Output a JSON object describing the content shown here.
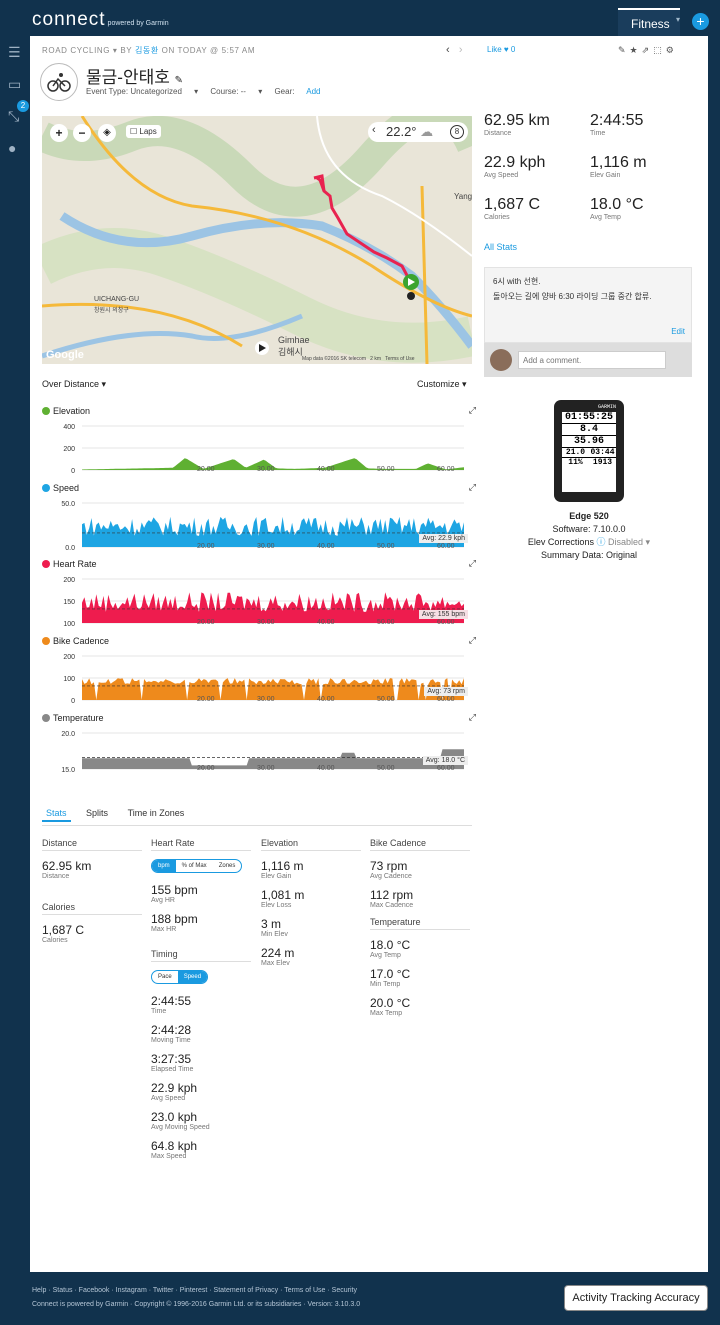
{
  "brand": {
    "logo": "connect",
    "powered": "powered by Garmin"
  },
  "top": {
    "fitness": "Fitness",
    "plus": "+"
  },
  "nav": {
    "badge": "2"
  },
  "activity": {
    "type": "ROAD CYCLING",
    "by": "BY",
    "user": "김동환",
    "date": "ON TODAY @ 5:57 AM",
    "title": "물금-안태호",
    "like": "Like",
    "like_count": "0",
    "event_type": "Event Type: Uncategorized",
    "course": "Course: --",
    "gear_label": "Gear:",
    "gear_add": "Add"
  },
  "map": {
    "laps": "Laps",
    "temp": "22.2°",
    "wind": "8",
    "town1": "UICHANG-GU",
    "town1b": "창원시 의창구",
    "town2": "Gimhae",
    "town2b": "김해시",
    "yang": "Yang",
    "google": "Google",
    "copyright": "Map data ©2016 SK telecom",
    "scale": "2 km",
    "terms": "Terms of Use"
  },
  "charts": {
    "over": "Over Distance",
    "customize": "Customize",
    "items": [
      {
        "label": "Elevation",
        "color": "#5fb032",
        "ticks": [
          "400",
          "200",
          "0"
        ],
        "avg": ""
      },
      {
        "label": "Speed",
        "color": "#1ea5e3",
        "ticks": [
          "50.0",
          "0.0"
        ],
        "avg": "Avg: 22.9 kph"
      },
      {
        "label": "Heart Rate",
        "color": "#ee1c4e",
        "ticks": [
          "200",
          "150",
          "100"
        ],
        "avg": "Avg: 155 bpm"
      },
      {
        "label": "Bike Cadence",
        "color": "#ee8a1c",
        "ticks": [
          "200",
          "100",
          "0"
        ],
        "avg": "Avg: 73 rpm"
      },
      {
        "label": "Temperature",
        "color": "#888888",
        "ticks": [
          "20.0",
          "15.0"
        ],
        "avg": "Avg: 18.0 °C"
      }
    ],
    "xticks": [
      "20.00",
      "30.00",
      "40.00",
      "50.00",
      "60.00"
    ]
  },
  "chart_data": [
    {
      "type": "area",
      "title": "Elevation",
      "x": [
        0,
        5,
        10,
        15,
        17,
        20,
        25,
        27,
        30,
        32,
        35,
        40,
        45,
        47,
        50,
        55,
        57,
        60,
        62.95
      ],
      "y": [
        5,
        10,
        15,
        20,
        110,
        10,
        100,
        20,
        95,
        15,
        10,
        20,
        110,
        15,
        10,
        10,
        60,
        5,
        25
      ],
      "ylim": [
        0,
        400
      ]
    },
    {
      "type": "area",
      "title": "Speed",
      "avg": 22.9,
      "ylim": [
        0,
        60
      ]
    },
    {
      "type": "area",
      "title": "Heart Rate",
      "avg": 155,
      "ylim": [
        100,
        200
      ]
    },
    {
      "type": "area",
      "title": "Bike Cadence",
      "avg": 73,
      "ylim": [
        0,
        200
      ]
    },
    {
      "type": "area",
      "title": "Temperature",
      "avg": 18.0,
      "ylim": [
        15,
        22
      ]
    }
  ],
  "tabs": [
    "Stats",
    "Splits",
    "Time in Zones"
  ],
  "stats": {
    "distance": {
      "head": "Distance",
      "v": "62.95 km",
      "l": "Distance"
    },
    "calories": {
      "head": "Calories",
      "v": "1,687 C",
      "l": "Calories"
    },
    "hr": {
      "head": "Heart Rate",
      "t1": "bpm",
      "t2": "% of Max",
      "t3": "Zones",
      "avg": "155 bpm",
      "avg_l": "Avg HR",
      "max": "188 bpm",
      "max_l": "Max HR"
    },
    "timing": {
      "head": "Timing",
      "t1": "Pace",
      "t2": "Speed",
      "rows": [
        [
          "2:44:55",
          "Time"
        ],
        [
          "2:44:28",
          "Moving Time"
        ],
        [
          "3:27:35",
          "Elapsed Time"
        ],
        [
          "22.9 kph",
          "Avg Speed"
        ],
        [
          "23.0 kph",
          "Avg Moving Speed"
        ],
        [
          "64.8 kph",
          "Max Speed"
        ]
      ]
    },
    "elev": {
      "head": "Elevation",
      "rows": [
        [
          "1,116 m",
          "Elev Gain"
        ],
        [
          "1,081 m",
          "Elev Loss"
        ],
        [
          "3 m",
          "Min Elev"
        ],
        [
          "224 m",
          "Max Elev"
        ]
      ]
    },
    "cad": {
      "head": "Bike Cadence",
      "rows": [
        [
          "73 rpm",
          "Avg Cadence"
        ],
        [
          "112 rpm",
          "Max Cadence"
        ]
      ]
    },
    "temp": {
      "head": "Temperature",
      "rows": [
        [
          "18.0 °C",
          "Avg Temp"
        ],
        [
          "17.0 °C",
          "Min Temp"
        ],
        [
          "20.0 °C",
          "Max Temp"
        ]
      ]
    }
  },
  "summary": [
    [
      "62.95 km",
      "Distance"
    ],
    [
      "2:44:55",
      "Time"
    ],
    [
      "22.9 kph",
      "Avg Speed"
    ],
    [
      "1,116 m",
      "Elev Gain"
    ],
    [
      "1,687 C",
      "Calories"
    ],
    [
      "18.0 °C",
      "Avg Temp"
    ]
  ],
  "allstats": "All Stats",
  "note": {
    "line1": "6시 with 선현.",
    "line2": "돌아오는 길에 양바 6:30 라이딩 그룹 중간 합류.",
    "edit": "Edit"
  },
  "comment_placeholder": "Add a comment.",
  "device": {
    "name": "Edge 520",
    "software": "Software: 7.10.0.0",
    "elev": "Elev Corrections",
    "elev_state": "Disabled",
    "summary": "Summary Data: Original",
    "brand": "GARMIN",
    "time": "01:55:25",
    "speed": "8.4",
    "dist": "35.96",
    "lapspd": "21.0",
    "curlap": "03:44",
    "grade": "11%",
    "ascent": "1913"
  },
  "footer": {
    "links": "Help · Status · Facebook · Instagram · Twitter · Pinterest · Statement of Privacy · Terms of Use · Security",
    "copy": "Connect is powered by Garmin · Copyright © 1996-2016 Garmin Ltd. or its subsidiaries · Version: 3.10.3.0",
    "button": "Activity Tracking Accuracy"
  }
}
